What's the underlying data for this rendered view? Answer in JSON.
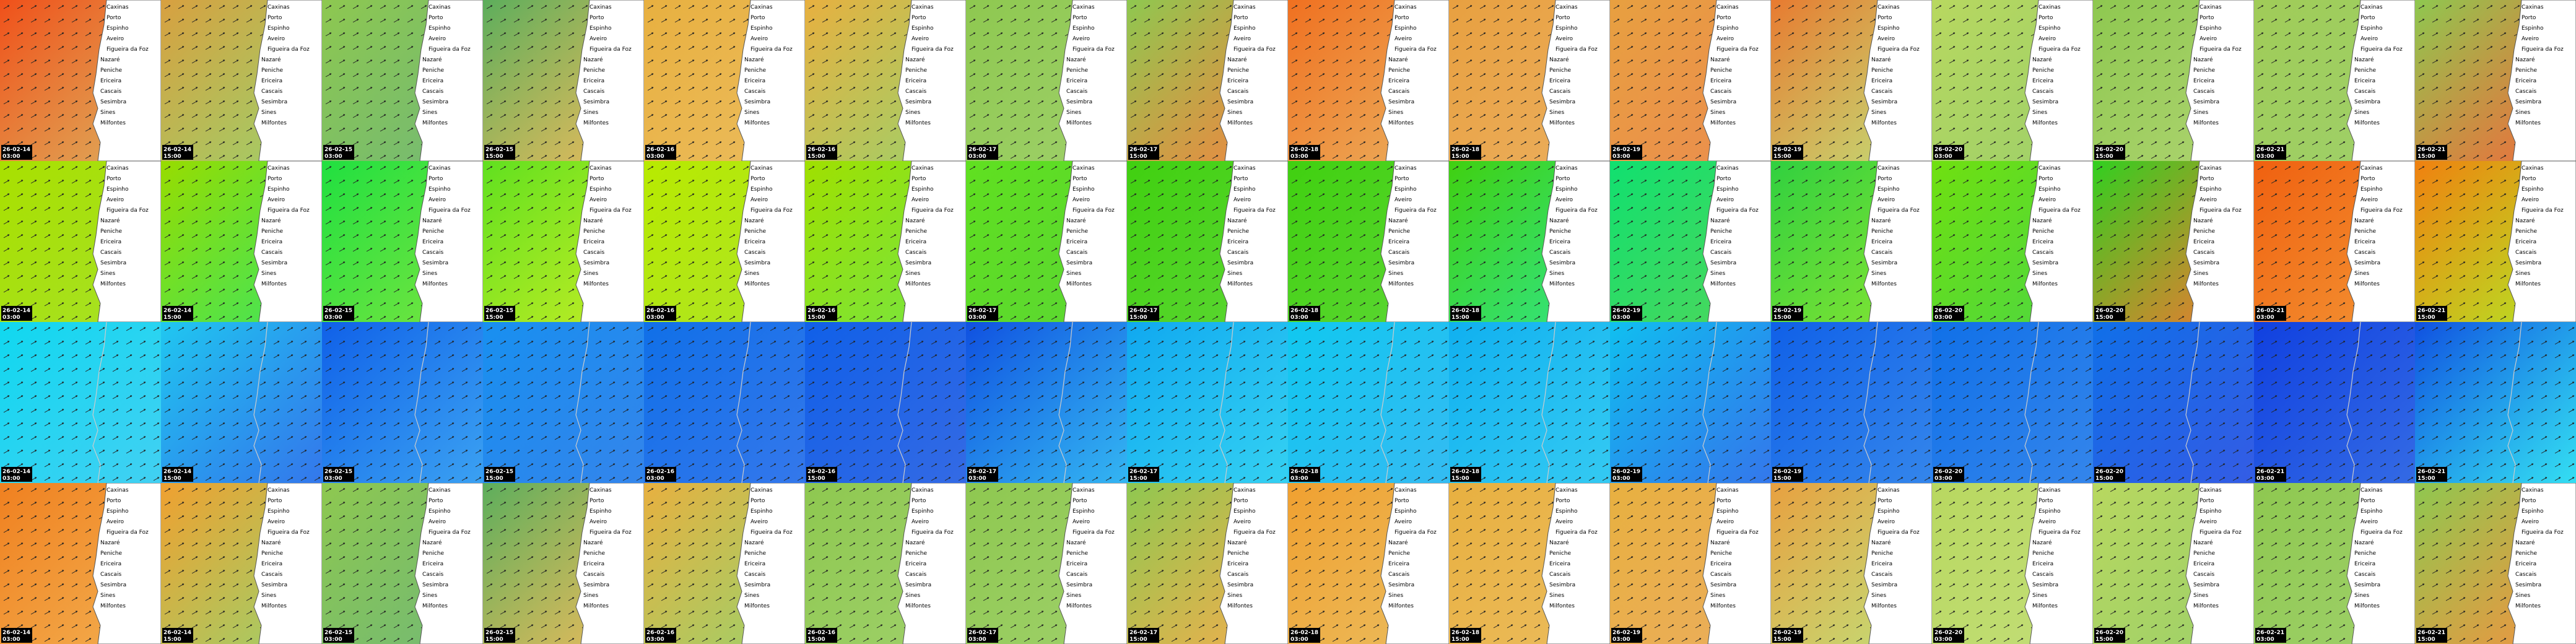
{
  "columns": [
    {
      "date": "26-02-14",
      "time": "03:00"
    },
    {
      "date": "26-02-14",
      "time": "15:00"
    },
    {
      "date": "26-02-15",
      "time": "03:00"
    },
    {
      "date": "26-02-15",
      "time": "15:00"
    },
    {
      "date": "26-02-16",
      "time": "03:00"
    },
    {
      "date": "26-02-16",
      "time": "15:00"
    },
    {
      "date": "26-02-17",
      "time": "03:00"
    },
    {
      "date": "26-02-17",
      "time": "15:00"
    },
    {
      "date": "26-02-18",
      "time": "03:00"
    },
    {
      "date": "26-02-18",
      "time": "15:00"
    },
    {
      "date": "26-02-19",
      "time": "03:00"
    },
    {
      "date": "26-02-19",
      "time": "15:00"
    },
    {
      "date": "26-02-20",
      "time": "03:00"
    },
    {
      "date": "26-02-20",
      "time": "15:00"
    },
    {
      "date": "26-02-21",
      "time": "03:00"
    },
    {
      "date": "26-02-21",
      "time": "15:00"
    }
  ],
  "towns": [
    "Caxinas",
    "Porto",
    "Espinho",
    "Aveiro",
    "Figueira da Foz",
    "Nazaré",
    "Peniche",
    "Ericeira",
    "Cascais",
    "Sesimbra",
    "Sines",
    "Milfontes"
  ]
}
